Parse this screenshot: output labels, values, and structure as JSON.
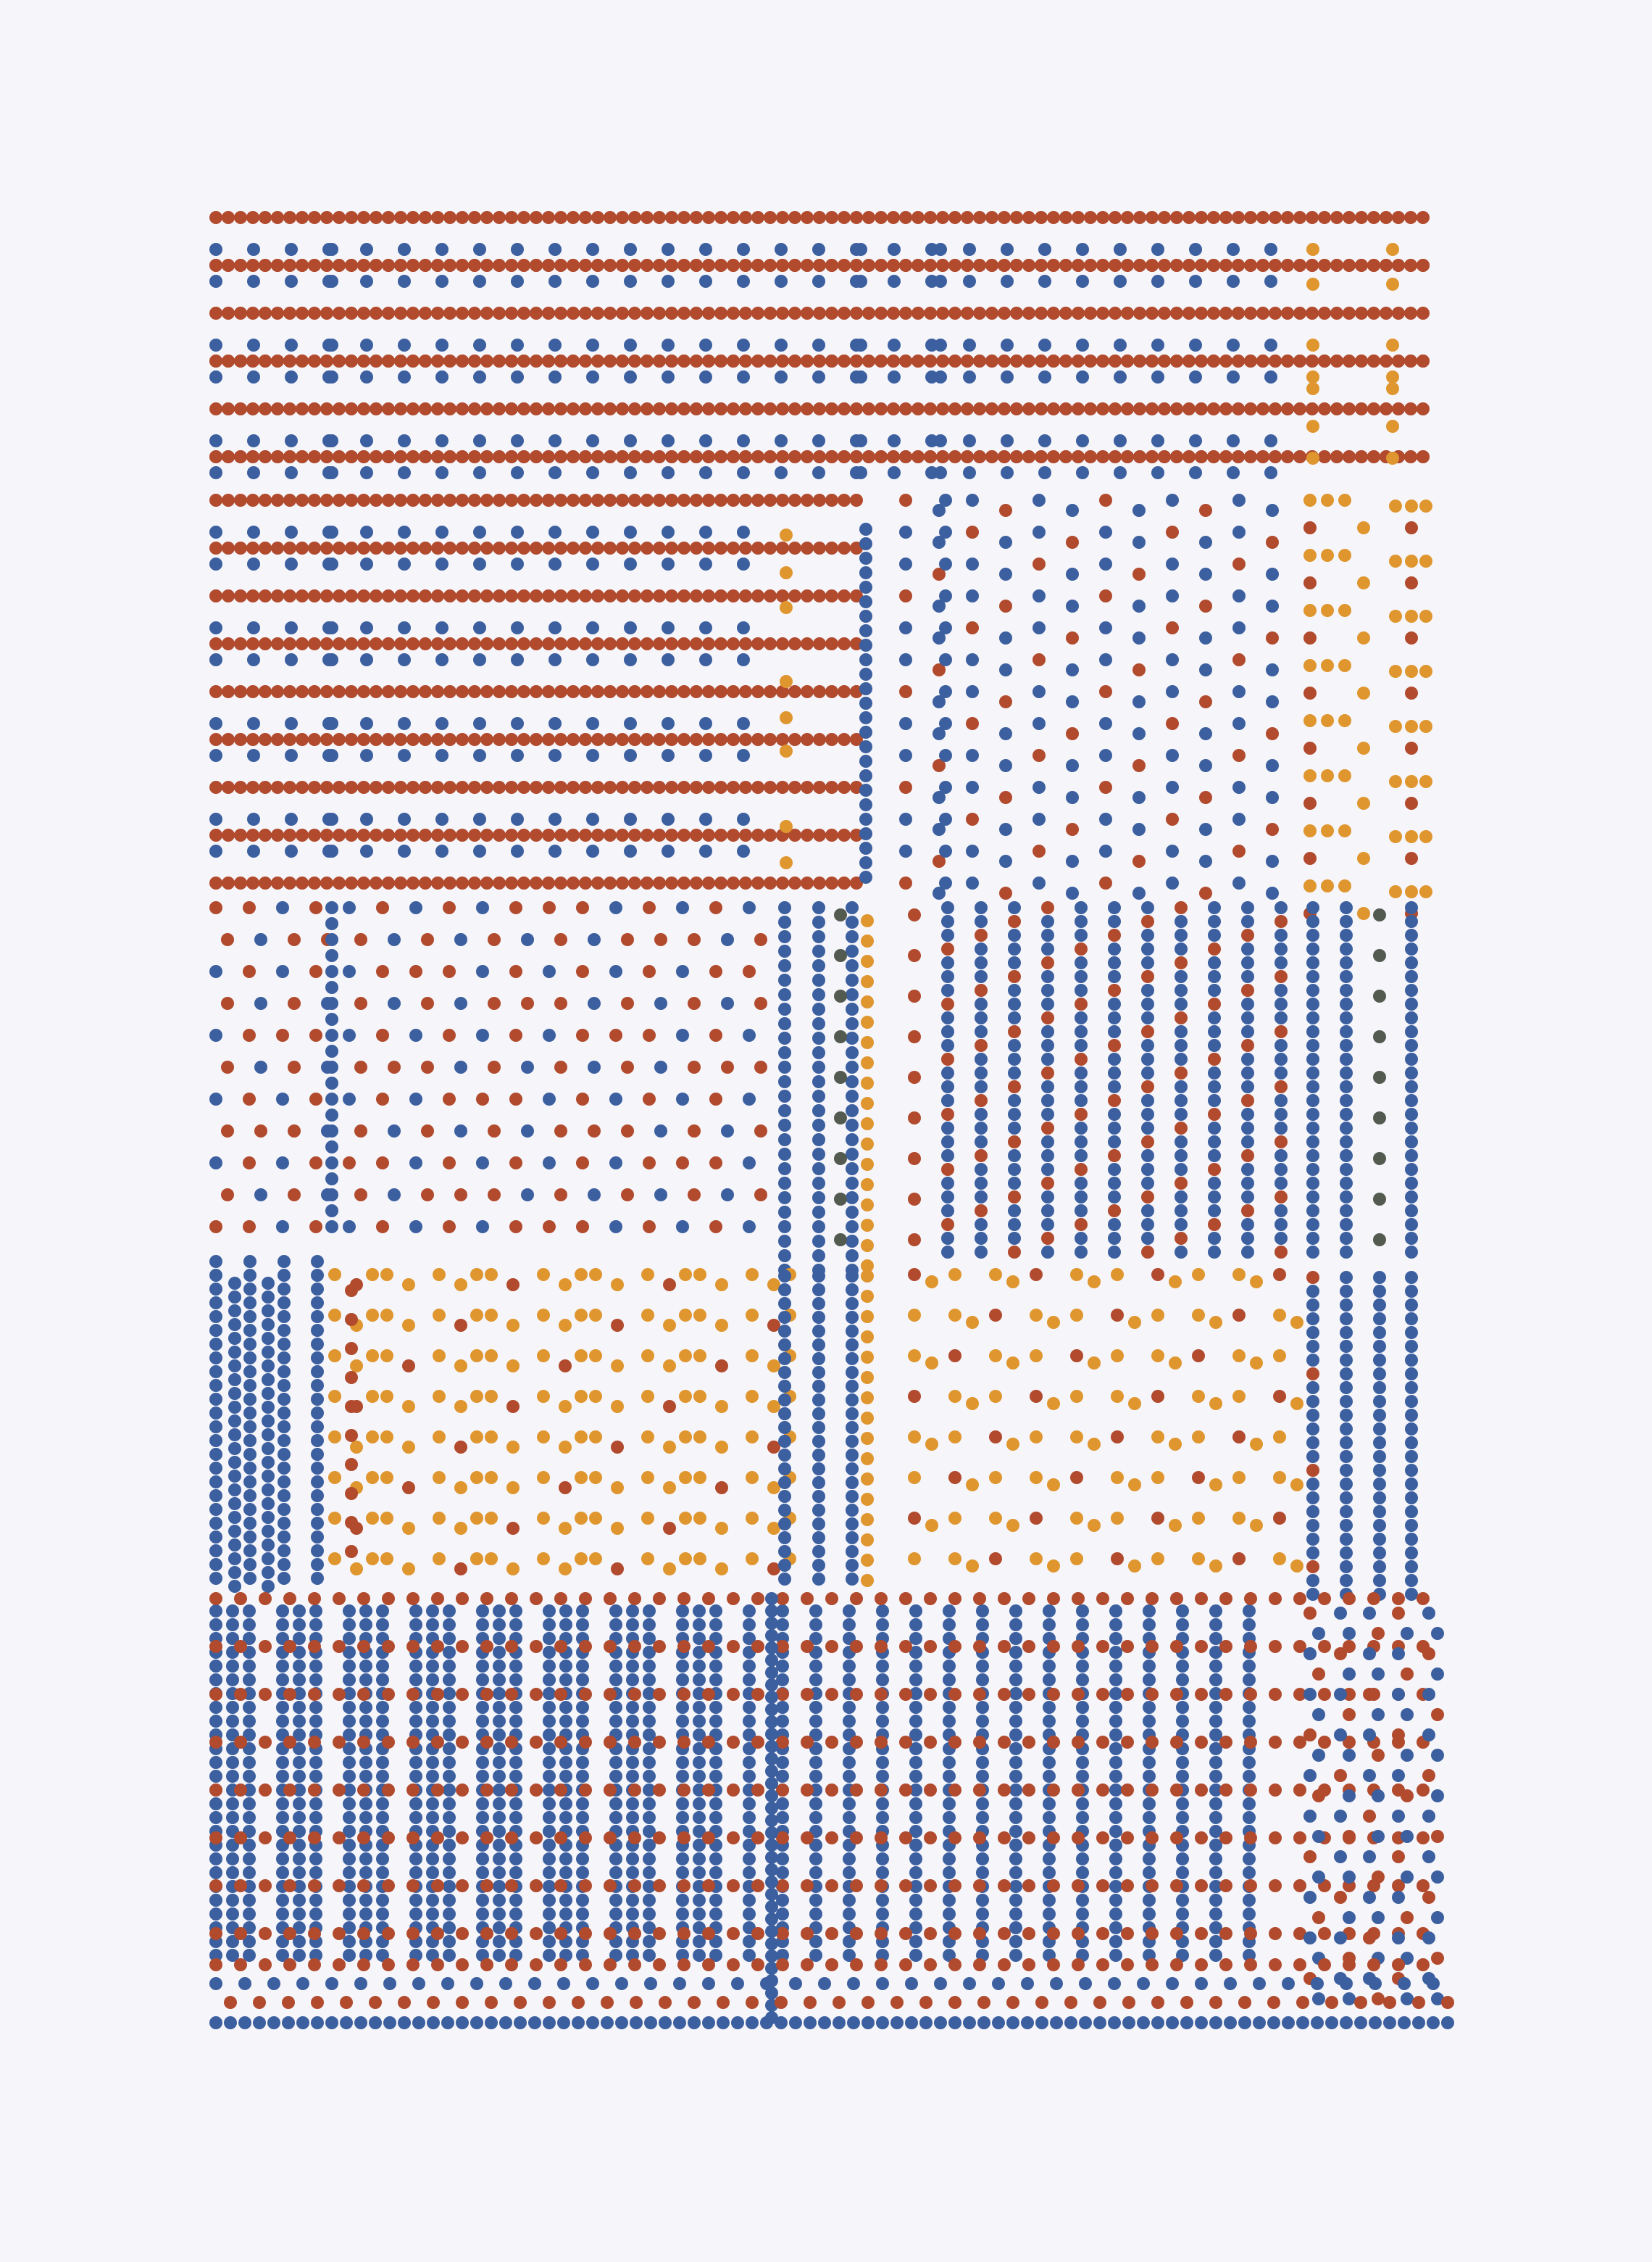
{
  "artwork": {
    "background_color": "#f5f5fa",
    "palette": {
      "rust": "#b24a2d",
      "blue": "#3c5f9f",
      "ochre": "#e0962e",
      "slate": "#535a50"
    },
    "regions": [
      {
        "id": "top-band",
        "pattern": "horizontal-stripes",
        "colors": [
          "rust",
          "blue"
        ]
      },
      {
        "id": "top-right-ochre-column",
        "pattern": "sparse-dots",
        "colors": [
          "ochre"
        ]
      },
      {
        "id": "upper-middle-block",
        "pattern": "horizontal-stripes",
        "colors": [
          "rust",
          "blue",
          "ochre"
        ]
      },
      {
        "id": "upper-right-block",
        "pattern": "checker-dots",
        "colors": [
          "blue",
          "rust"
        ]
      },
      {
        "id": "far-right-ochre-clusters",
        "pattern": "clusters",
        "colors": [
          "ochre",
          "rust"
        ]
      },
      {
        "id": "mid-left-block",
        "pattern": "checker-dots",
        "colors": [
          "blue",
          "rust"
        ]
      },
      {
        "id": "mid-center-vertical",
        "pattern": "vertical-stripes",
        "colors": [
          "blue",
          "slate",
          "ochre"
        ]
      },
      {
        "id": "mid-right-vertical",
        "pattern": "vertical-stripes",
        "colors": [
          "blue",
          "rust"
        ]
      },
      {
        "id": "far-right-slate",
        "pattern": "vertical-stripes",
        "colors": [
          "blue",
          "slate"
        ]
      },
      {
        "id": "lower-left-vertical",
        "pattern": "vertical-stripes",
        "colors": [
          "blue"
        ]
      },
      {
        "id": "lower-left-ochre",
        "pattern": "ochre-grid",
        "colors": [
          "ochre",
          "rust"
        ]
      },
      {
        "id": "lower-center-vertical",
        "pattern": "vertical-stripes",
        "colors": [
          "blue",
          "ochre"
        ]
      },
      {
        "id": "lower-right-ochre",
        "pattern": "ochre-grid",
        "colors": [
          "ochre",
          "rust"
        ]
      },
      {
        "id": "lower-right-vertical",
        "pattern": "vertical-stripes",
        "colors": [
          "blue",
          "rust"
        ]
      },
      {
        "id": "bottom-band",
        "pattern": "grid-with-rust-rows",
        "colors": [
          "blue",
          "rust"
        ]
      },
      {
        "id": "bottom-right-sparse",
        "pattern": "sparse-mixed",
        "colors": [
          "blue",
          "rust"
        ]
      },
      {
        "id": "bottom-rows",
        "pattern": "mixed-rows",
        "colors": [
          "blue",
          "rust"
        ]
      }
    ]
  }
}
